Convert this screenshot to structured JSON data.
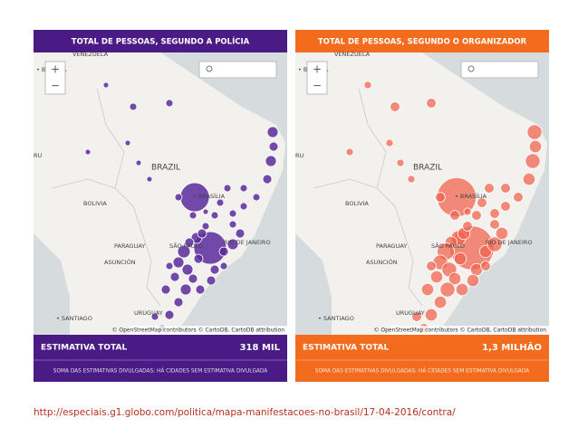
{
  "panels": [
    {
      "title": "TOTAL DE PESSOAS, SEGUNDO A POLÍCIA",
      "total_label": "ESTIMATIVA TOTAL",
      "total_value": "318 MIL",
      "note": "SOMA DAS ESTIMATIVAS DIVULGADAS; HÁ CIDADES SEM ESTIMATIVA DIVULGADA",
      "zoom_in": "+",
      "zoom_out": "−",
      "attribution": "© OpenStreetMap contributors © CartoDB, CartoDB attribution",
      "map_labels": [
        "VENEZUELA",
        "• BOGOTÁ",
        "RU",
        "BRAZIL",
        "BOLIVIA",
        "• BRASÍLIA",
        "PARAGUAY",
        "SÃO PAULO",
        "RIO DE JANEIRO",
        "ASUNCIÓN",
        "• SANTIAGO",
        "URUGUAY"
      ]
    },
    {
      "title": "TOTAL DE PESSOAS, SEGUNDO O ORGANIZADOR",
      "total_label": "ESTIMATIVA TOTAL",
      "total_value": "1,3 MILHÃO",
      "note": "SOMA DAS ESTIMATIVAS DIVULGADAS; HÁ CIDADES SEM ESTIMATIVA DIVULGADA",
      "zoom_in": "+",
      "zoom_out": "−",
      "attribution": "© OpenStreetMap contributors © CartoDB, CartoDB attribution",
      "map_labels": [
        "VENEZUELA",
        "• BOGOTÁ",
        "RU",
        "BRAZIL",
        "BOLIVIA",
        "• BRASÍLIA",
        "PARAGUAY",
        "SÃO PAULO",
        "RIO DE JANEIRO",
        "ASUNCIÓN",
        "• SANTIAGO",
        "URUGUAY"
      ]
    }
  ],
  "source_url": "http://especiais.g1.globo.com/politica/mapa-manifestacoes-no-brasil/17-04-2016/contra/"
}
